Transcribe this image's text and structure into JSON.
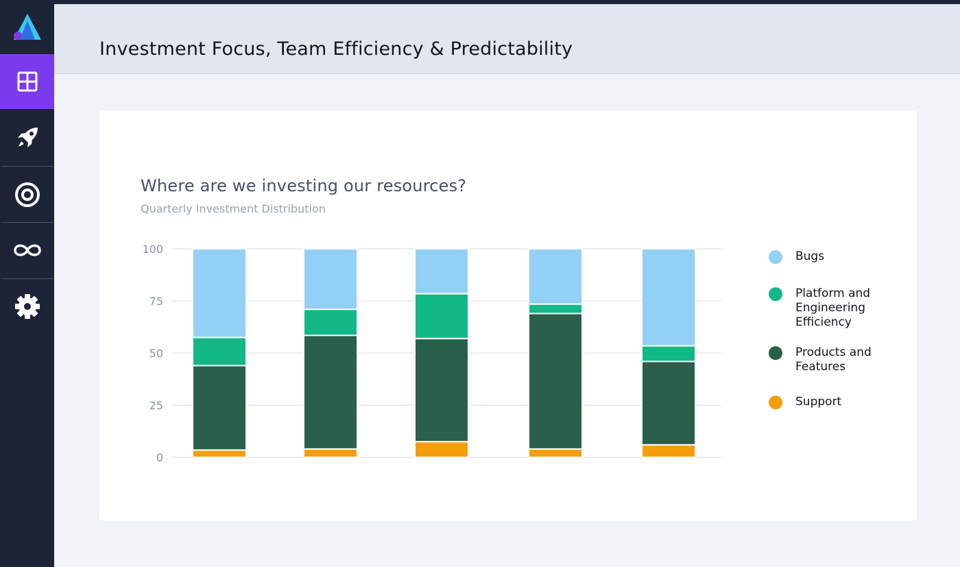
{
  "sidebar": {
    "logo_icon": "triangle-logo-icon",
    "items": [
      {
        "icon": "dashboard-grid-icon",
        "active": true
      },
      {
        "icon": "rocket-icon",
        "active": false
      },
      {
        "icon": "target-icon",
        "active": false
      },
      {
        "icon": "infinity-loop-icon",
        "active": false
      },
      {
        "icon": "gear-icon",
        "active": false
      }
    ]
  },
  "header": {
    "title": "Investment Focus, Team Efficiency & Predictability"
  },
  "card": {
    "title": "Where are we investing our resources?",
    "subtitle": "Quarterly Investment Distribution"
  },
  "chart_data": {
    "type": "bar",
    "stacked": true,
    "title": "Where are we investing our resources?",
    "subtitle": "Quarterly Investment Distribution",
    "categories": [
      "",
      "",
      "",
      "",
      ""
    ],
    "ylim": [
      0,
      100
    ],
    "yticks": [
      0,
      25,
      50,
      75,
      100
    ],
    "grid": true,
    "legend_position": "right",
    "series": [
      {
        "name": "Support",
        "color": "#f59e0b",
        "values": [
          3.5,
          4,
          7.5,
          4,
          6
        ]
      },
      {
        "name": "Products and Features",
        "color": "#2a5f4a",
        "values": [
          40.5,
          54.5,
          49.5,
          65,
          40
        ]
      },
      {
        "name": "Platform and Engineering Efficiency",
        "color": "#12b886",
        "values": [
          13.5,
          12.5,
          21.5,
          4.5,
          7.5
        ]
      },
      {
        "name": "Bugs",
        "color": "#93d0f5",
        "values": [
          42.5,
          29,
          21.5,
          26.5,
          46.5
        ]
      }
    ]
  },
  "legend": [
    {
      "label": "Bugs",
      "color": "#93d0f5"
    },
    {
      "label": "Platform and Engineering Efficiency",
      "color": "#12b886"
    },
    {
      "label": "Products and Features",
      "color": "#2a5f4a"
    },
    {
      "label": "Support",
      "color": "#f59e0b"
    }
  ]
}
